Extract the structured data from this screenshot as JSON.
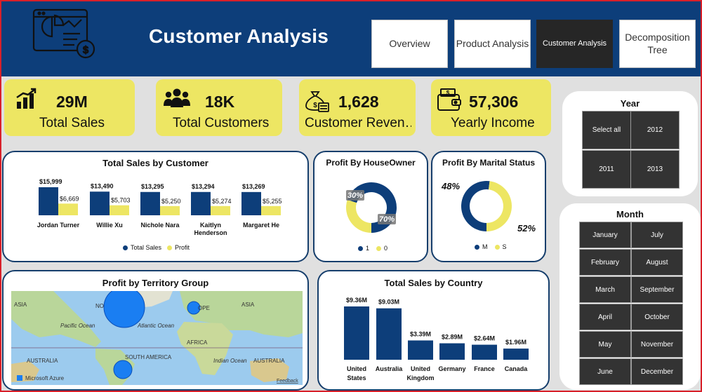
{
  "header": {
    "title": "Customer Analysis",
    "logo_icon": "analytics-report-icon",
    "nav": [
      {
        "label": "Overview",
        "active": false
      },
      {
        "label": "Product Analysis",
        "active": false
      },
      {
        "label": "Customer Analysis",
        "active": true
      },
      {
        "label": "Decomposition Tree",
        "active": false
      }
    ]
  },
  "kpis": [
    {
      "value": "29M",
      "label": "Total Sales",
      "icon": "bar-chart-icon"
    },
    {
      "value": "18K",
      "label": "Total Customers",
      "icon": "people-icon"
    },
    {
      "value": "1,628",
      "label": "Customer Reven…",
      "icon": "money-bag-icon"
    },
    {
      "value": "57,306",
      "label": "Yearly Income",
      "icon": "wallet-icon"
    }
  ],
  "sales_by_customer": {
    "title": "Total Sales by Customer",
    "legend": [
      "Total Sales",
      "Profit"
    ]
  },
  "profit_houseowner": {
    "title": "Profit By HouseOwner",
    "legend": [
      "1",
      "0"
    ]
  },
  "profit_marital": {
    "title": "Profit By Marital Status",
    "legend": [
      "M",
      "S"
    ]
  },
  "territory": {
    "title": "Profit by Territory Group",
    "map_labels": [
      "ASIA",
      "NO",
      "OPE",
      "ASIA",
      "Pacific Ocean",
      "Atlantic Ocean",
      "AFRICA",
      "AUSTRALIA",
      "SOUTH AMERICA",
      "Indian Ocean",
      "AUSTRALIA"
    ],
    "attribution": "Microsoft Azure",
    "feedback": "Feedback"
  },
  "sales_by_country": {
    "title": "Total Sales by Country"
  },
  "year_slicer": {
    "title": "Year",
    "items": [
      "Select all",
      "2012",
      "2011",
      "2013"
    ]
  },
  "month_slicer": {
    "title": "Month",
    "items": [
      "January",
      "July",
      "February",
      "August",
      "March",
      "September",
      "April",
      "October",
      "May",
      "November",
      "June",
      "December"
    ]
  },
  "colors": {
    "navy": "#0d3e7a",
    "yellow": "#ede663",
    "dark_tile": "#333333",
    "accent_blue": "#1a7ef2"
  },
  "chart_data": [
    {
      "type": "bar",
      "title": "Total Sales by Customer",
      "categories": [
        "Jordan Turner",
        "Willie Xu",
        "Nichole Nara",
        "Kaitlyn Henderson",
        "Margaret He"
      ],
      "series": [
        {
          "name": "Total Sales",
          "values": [
            15999,
            13490,
            13295,
            13294,
            13269
          ],
          "labels": [
            "$15,999",
            "$13,490",
            "$13,295",
            "$13,294",
            "$13,269"
          ],
          "color": "#0d3e7a"
        },
        {
          "name": "Profit",
          "values": [
            6669,
            5703,
            5250,
            5274,
            5255
          ],
          "labels": [
            "$6,669",
            "$5,703",
            "$5,250",
            "$5,274",
            "$5,255"
          ],
          "color": "#ede663"
        }
      ]
    },
    {
      "type": "pie",
      "title": "Profit By HouseOwner",
      "categories": [
        "1",
        "0"
      ],
      "values": [
        70,
        30
      ],
      "labels": [
        "70%",
        "30%"
      ],
      "colors": [
        "#0d3e7a",
        "#ede663"
      ]
    },
    {
      "type": "pie",
      "title": "Profit By Marital Status",
      "categories": [
        "M",
        "S"
      ],
      "values": [
        52,
        48
      ],
      "labels": [
        "52%",
        "48%"
      ],
      "colors": [
        "#0d3e7a",
        "#ede663"
      ]
    },
    {
      "type": "bar",
      "title": "Total Sales by Country",
      "categories": [
        "United States",
        "Australia",
        "United Kingdom",
        "Germany",
        "France",
        "Canada"
      ],
      "values": [
        9.36,
        9.03,
        3.39,
        2.89,
        2.64,
        1.96
      ],
      "labels": [
        "$9.36M",
        "$9.03M",
        "$3.39M",
        "$2.89M",
        "$2.64M",
        "$1.96M"
      ],
      "unit": "M",
      "color": "#0d3e7a"
    }
  ]
}
